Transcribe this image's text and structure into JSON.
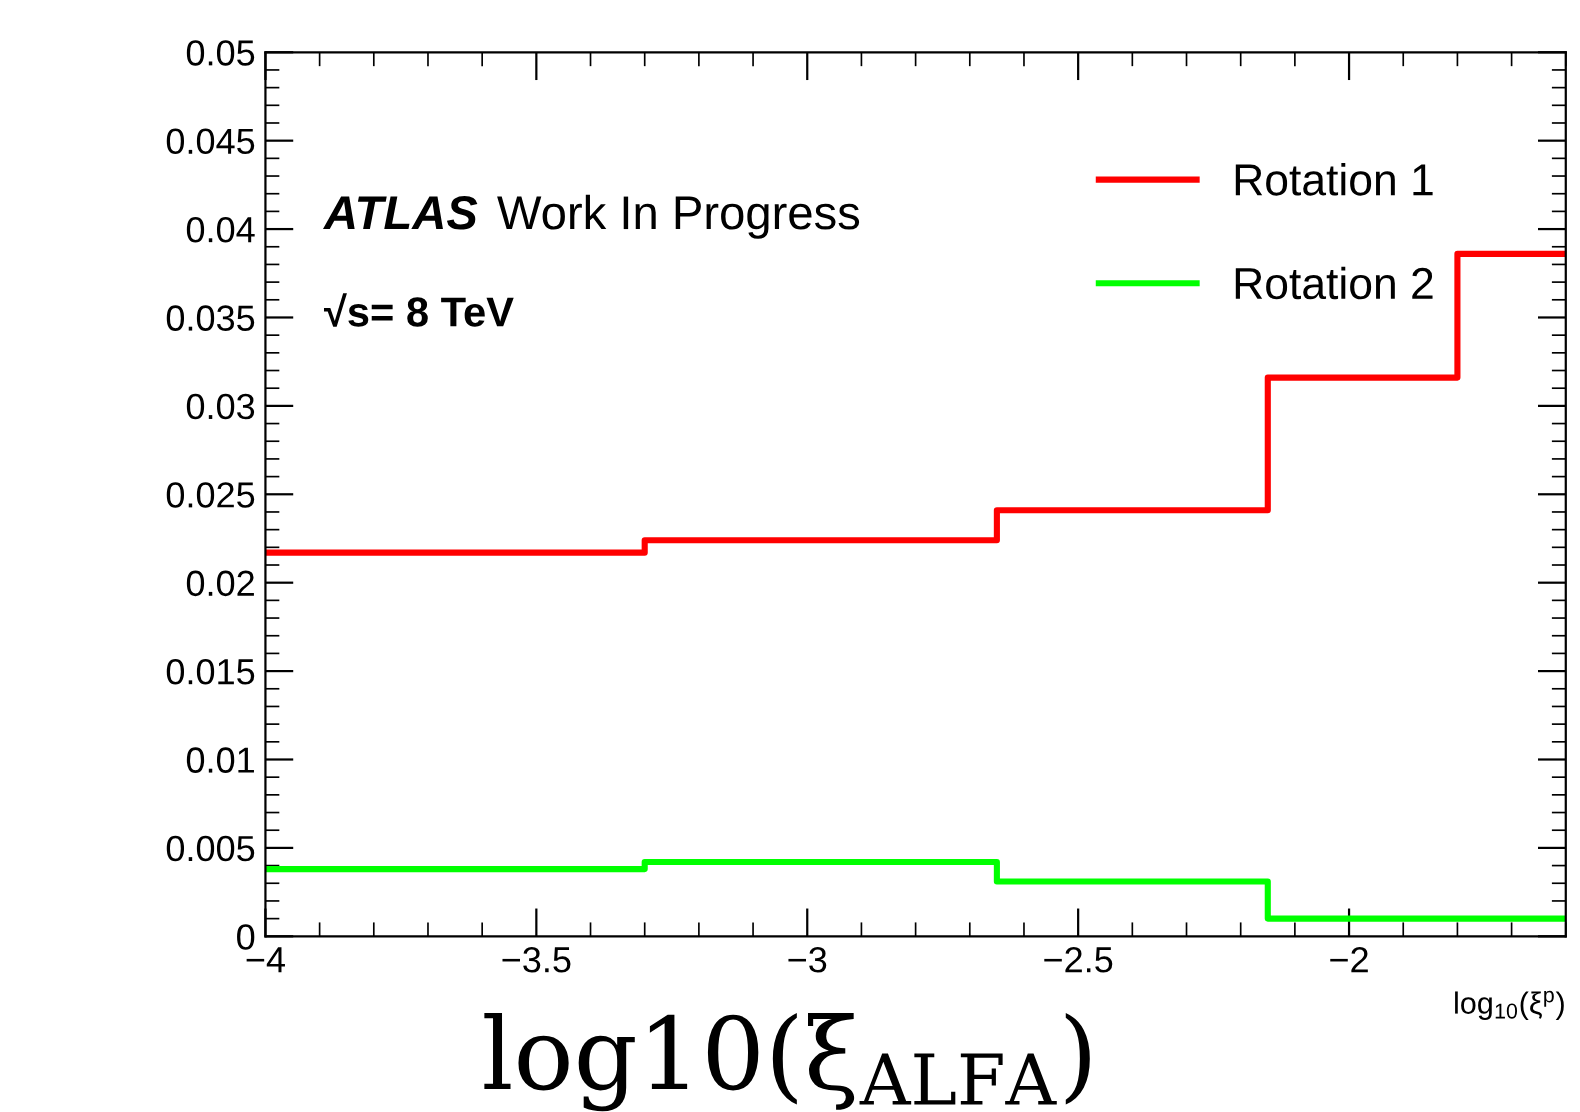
{
  "chart_data": {
    "type": "step",
    "x": [
      -4,
      -3.3,
      -2.65,
      -2.15,
      -1.8,
      -1.6
    ],
    "series": [
      {
        "name": "Rotation 1",
        "color": "#ff0000",
        "values": [
          0.0217,
          0.0224,
          0.0241,
          0.0316,
          0.0386,
          0.0386
        ]
      },
      {
        "name": "Rotation 2",
        "color": "#00ff00",
        "values": [
          0.0038,
          0.0042,
          0.0031,
          0.001,
          0.001,
          0.001
        ]
      }
    ],
    "xlabel": "log$_{10}$(ξ$^{p}$)",
    "annotations": [
      "ATLAS",
      "Work In Progress",
      "√s= 8 TeV",
      "log10(ξ$_{ALFA}$)"
    ],
    "xlim": [
      -4,
      -1.6
    ],
    "xticks": [
      {
        "value": -4,
        "label": "−4"
      },
      {
        "value": -3.5,
        "label": "−3.5"
      },
      {
        "value": -3,
        "label": "−3"
      },
      {
        "value": -2.5,
        "label": "−2.5"
      },
      {
        "value": -2,
        "label": "−2"
      }
    ],
    "ylim": [
      0,
      0.05
    ],
    "yticks": [
      0,
      0.005,
      0.01,
      0.015,
      0.02,
      0.025,
      0.03,
      0.035,
      0.04,
      0.045,
      0.05
    ],
    "legend": "top right",
    "grid": false
  }
}
